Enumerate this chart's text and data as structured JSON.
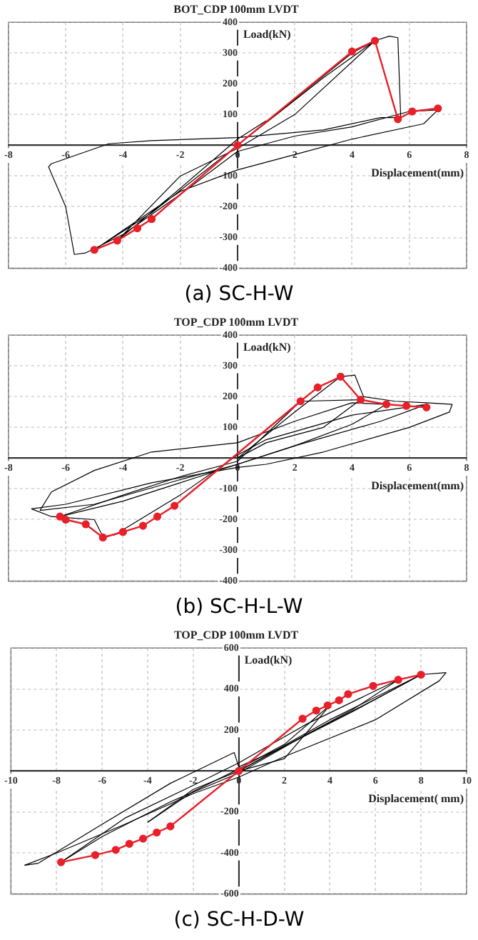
{
  "chart_data": [
    {
      "type": "line",
      "title": "BOT_CDP 100mm LVDT",
      "xlabel": "Displacement(mm)",
      "ylabel": "Load(kN)",
      "annotations": [
        "(a) SC-H-W"
      ],
      "grid": true,
      "xlim": [
        -8,
        8
      ],
      "xticks": [
        -8,
        -6,
        -4,
        -2,
        0,
        2,
        4,
        6,
        8
      ],
      "ylim": [
        -400,
        400
      ],
      "yticks": [
        -400,
        -300,
        -200,
        -100,
        100,
        200,
        300,
        400
      ],
      "series": [
        {
          "color": "#000000",
          "marker": "none",
          "x": [
            0,
            2,
            4,
            4.8,
            5.3,
            5.6,
            5.7,
            5,
            3,
            0,
            -3,
            -4.5,
            -6.5,
            -6.6,
            -6,
            -5.7,
            -5.3,
            -4,
            -2,
            0,
            2,
            4,
            6,
            7,
            6.5,
            4,
            2,
            0,
            -2,
            -5,
            -3,
            0,
            3,
            4.8,
            2,
            0,
            -2,
            -4.2,
            -2,
            0,
            1
          ],
          "values": [
            0,
            150,
            300,
            340,
            355,
            350,
            90,
            90,
            50,
            25,
            15,
            5,
            -60,
            -70,
            -200,
            -355,
            -350,
            -290,
            -160,
            -20,
            30,
            60,
            110,
            115,
            70,
            20,
            -30,
            -80,
            -150,
            -340,
            -220,
            0,
            220,
            340,
            100,
            -10,
            -100,
            -310,
            -140,
            20,
            80
          ]
        },
        {
          "color": "#e8202a",
          "marker": "circle",
          "x": [
            -5,
            -4.2,
            -3.5,
            -3,
            0,
            4,
            4.8,
            5.6,
            6.1,
            7
          ],
          "values": [
            -340,
            -310,
            -270,
            -240,
            0,
            305,
            340,
            85,
            110,
            120
          ]
        }
      ]
    },
    {
      "type": "line",
      "title": "TOP_CDP 100mm LVDT",
      "xlabel": "Displacement(mm)",
      "ylabel": "Load(kN)",
      "annotations": [
        "(b) SC-H-L-W"
      ],
      "grid": true,
      "xlim": [
        -8,
        8
      ],
      "xticks": [
        -8,
        -6,
        -4,
        -2,
        0,
        2,
        4,
        6,
        8
      ],
      "ylim": [
        -400,
        400
      ],
      "yticks": [
        -400,
        -300,
        -200,
        -100,
        100,
        200,
        300,
        400
      ],
      "series": [
        {
          "color": "#000000",
          "marker": "none",
          "x": [
            0,
            2,
            3.6,
            4.1,
            4.4,
            5.5,
            6.6,
            7.5
          ],
          "values": [
            0,
            150,
            265,
            270,
            200,
            185,
            180,
            175
          ]
        },
        {
          "color": "#000000",
          "marker": "none",
          "x": [
            7.5,
            7.4,
            6,
            3,
            1,
            0,
            -3,
            -6,
            -7.2
          ],
          "values": [
            175,
            150,
            100,
            20,
            -20,
            -30,
            -80,
            -150,
            -165
          ]
        },
        {
          "color": "#000000",
          "marker": "none",
          "x": [
            -7.2,
            -6.5,
            -5,
            -4.7,
            -4.3,
            -2,
            0,
            1,
            4,
            6.6
          ],
          "values": [
            -165,
            -190,
            -200,
            -255,
            -250,
            -120,
            10,
            60,
            140,
            175
          ]
        },
        {
          "color": "#000000",
          "marker": "none",
          "x": [
            6.6,
            5,
            2,
            0,
            -2,
            -5,
            -6.9
          ],
          "values": [
            175,
            120,
            40,
            -20,
            -70,
            -150,
            -170
          ]
        },
        {
          "color": "#000000",
          "marker": "none",
          "x": [
            -6.9,
            -6.5,
            -5,
            -3,
            0,
            2,
            4,
            5.2
          ],
          "values": [
            -170,
            -110,
            -40,
            20,
            50,
            120,
            180,
            175
          ]
        },
        {
          "color": "#000000",
          "marker": "none",
          "x": [
            5.2,
            4,
            2,
            0,
            -2,
            -4,
            -6.2
          ],
          "values": [
            175,
            110,
            40,
            -20,
            -80,
            -140,
            -190
          ]
        },
        {
          "color": "#000000",
          "marker": "none",
          "x": [
            -6.2,
            -4,
            -2,
            0,
            2.2,
            4.3
          ],
          "values": [
            -190,
            -120,
            -60,
            -10,
            185,
            190
          ]
        },
        {
          "color": "#000000",
          "marker": "none",
          "x": [
            4.3,
            3,
            1,
            0
          ],
          "values": [
            190,
            100,
            50,
            0
          ]
        },
        {
          "color": "#e8202a",
          "marker": "circle",
          "x": [
            -6.2,
            -6,
            -5.3,
            -4.7,
            -4,
            -3.3,
            -2.8,
            -2.2,
            2.2,
            2.8,
            3.6,
            4.3,
            5.2,
            5.9,
            6.6
          ],
          "values": [
            -190,
            -200,
            -215,
            -258,
            -240,
            -220,
            -190,
            -155,
            185,
            230,
            265,
            190,
            175,
            170,
            165
          ]
        }
      ]
    },
    {
      "type": "line",
      "title": "TOP_CDP 100mm LVDT",
      "xlabel": "Displacement( mm)",
      "ylabel": "Load(kN)",
      "annotations": [
        "(c) SC-H-D-W"
      ],
      "grid": true,
      "xlim": [
        -10,
        10
      ],
      "xticks": [
        -10,
        -8,
        -6,
        -4,
        -2,
        0,
        2,
        4,
        6,
        8,
        10
      ],
      "ylim": [
        -600,
        600
      ],
      "yticks": [
        -600,
        -400,
        -200,
        200,
        400,
        600
      ],
      "series": [
        {
          "color": "#000000",
          "marker": "none",
          "x": [
            0,
            4,
            8,
            9.1
          ],
          "values": [
            0,
            250,
            470,
            480
          ]
        },
        {
          "color": "#000000",
          "marker": "none",
          "x": [
            9.1,
            8.8,
            6,
            2,
            0,
            -2,
            -5,
            -8,
            -9.4
          ],
          "values": [
            480,
            440,
            250,
            70,
            -30,
            -110,
            -260,
            -400,
            -460
          ]
        },
        {
          "color": "#000000",
          "marker": "none",
          "x": [
            -9.4,
            -8.8,
            -6,
            -3,
            -0.2,
            0,
            2,
            5,
            8
          ],
          "values": [
            -460,
            -450,
            -260,
            -60,
            90,
            20,
            120,
            290,
            470
          ]
        },
        {
          "color": "#000000",
          "marker": "none",
          "x": [
            8,
            6,
            3,
            0,
            -3,
            -6,
            -7.8
          ],
          "values": [
            470,
            350,
            180,
            -10,
            -150,
            -320,
            -445
          ]
        },
        {
          "color": "#000000",
          "marker": "none",
          "x": [
            -7.8,
            -5,
            -2,
            0,
            3,
            7
          ],
          "values": [
            -445,
            -230,
            -70,
            40,
            230,
            445
          ]
        },
        {
          "color": "#000000",
          "marker": "none",
          "x": [
            7,
            5,
            2,
            0,
            -2,
            -4
          ],
          "values": [
            445,
            300,
            120,
            0,
            -90,
            -250
          ]
        },
        {
          "color": "#000000",
          "marker": "none",
          "x": [
            -4,
            -2,
            0,
            2,
            4
          ],
          "values": [
            -250,
            -100,
            10,
            130,
            320
          ]
        },
        {
          "color": "#000000",
          "marker": "none",
          "x": [
            4,
            2,
            0
          ],
          "values": [
            320,
            60,
            0
          ]
        },
        {
          "color": "#e8202a",
          "marker": "circle",
          "x": [
            -7.8,
            -6.3,
            -5.4,
            -4.8,
            -4.2,
            -3.6,
            -3,
            0,
            2.8,
            3.4,
            3.9,
            4.4,
            4.8,
            5.9,
            7,
            8
          ],
          "values": [
            -445,
            -410,
            -385,
            -355,
            -330,
            -300,
            -270,
            0,
            255,
            295,
            320,
            345,
            375,
            415,
            445,
            470
          ]
        }
      ]
    }
  ]
}
